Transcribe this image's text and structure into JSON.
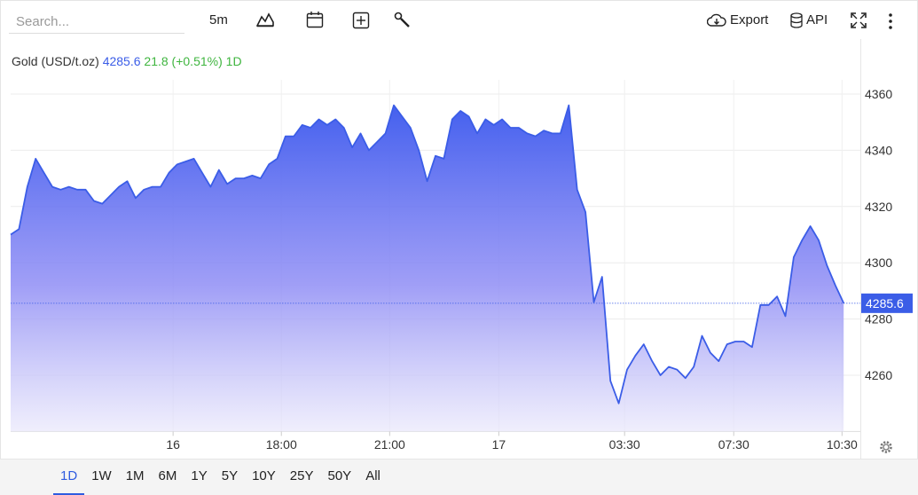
{
  "toolbar": {
    "search_placeholder": "Search...",
    "interval": "5m",
    "export": "Export",
    "api": "API"
  },
  "chart_data": {
    "type": "area",
    "title": "Gold (USD/t.oz)",
    "change": "21.8 (+0.51%)",
    "period": "1D",
    "color": "#3b5de7",
    "x": [
      0,
      1,
      2,
      3,
      4,
      5,
      6,
      7,
      8,
      9,
      10,
      11,
      12,
      13,
      14,
      15,
      16,
      17,
      18,
      19,
      20,
      21,
      22,
      23,
      24,
      25,
      26,
      27,
      28,
      29,
      30,
      31,
      32,
      33,
      34,
      35,
      36,
      37,
      38,
      39,
      40,
      41,
      42,
      43,
      44,
      45,
      46,
      47,
      48,
      49,
      50,
      51,
      52,
      53,
      54,
      55,
      56,
      57,
      58,
      59,
      60,
      61,
      62,
      63,
      64,
      65,
      66,
      67,
      68,
      69,
      70,
      71,
      72,
      73,
      74,
      75,
      76,
      77,
      78,
      79,
      80,
      81,
      82,
      83,
      84,
      85,
      86,
      87,
      88,
      89,
      90,
      91,
      92,
      93,
      94,
      95,
      96,
      97,
      98,
      99,
      100
    ],
    "values": [
      4310,
      4312,
      4327,
      4337,
      4332,
      4327,
      4326,
      4327,
      4326,
      4326,
      4322,
      4321,
      4324,
      4327,
      4329,
      4323,
      4326,
      4327,
      4327,
      4332,
      4335,
      4336,
      4337,
      4332,
      4327,
      4333,
      4328,
      4330,
      4330,
      4331,
      4330,
      4335,
      4337,
      4345,
      4345,
      4349,
      4348,
      4351,
      4349,
      4351,
      4348,
      4341,
      4346,
      4340,
      4343,
      4346,
      4356,
      4352,
      4348,
      4340,
      4329,
      4338,
      4337,
      4351,
      4354,
      4352,
      4346,
      4351,
      4349,
      4351,
      4348,
      4348,
      4346,
      4345,
      4347,
      4346,
      4346,
      4356,
      4326,
      4318,
      4286,
      4295,
      4258,
      4250,
      4262,
      4267,
      4271,
      4265,
      4260,
      4263,
      4262,
      4259,
      4263,
      4274,
      4268,
      4265,
      4271,
      4272,
      4272,
      4270,
      4285,
      4285,
      4288,
      4281,
      4302,
      4308,
      4313,
      4308,
      4299,
      4292,
      4285.6
    ],
    "xlim": [
      0,
      102
    ],
    "xticks": [
      {
        "value": 19.5,
        "label": "16"
      },
      {
        "value": 32.5,
        "label": "18:00"
      },
      {
        "value": 45.5,
        "label": "21:00"
      },
      {
        "value": 58.6,
        "label": "17"
      },
      {
        "value": 73.7,
        "label": "03:30"
      },
      {
        "value": 86.8,
        "label": "07:30"
      },
      {
        "value": 99.8,
        "label": "10:30"
      }
    ],
    "ylim": [
      4240,
      4380
    ],
    "yticks": [
      4260,
      4280,
      4300,
      4320,
      4340,
      4360
    ],
    "grid": true
  },
  "ranges": [
    "1D",
    "1W",
    "1M",
    "6M",
    "1Y",
    "5Y",
    "10Y",
    "25Y",
    "50Y",
    "All"
  ],
  "active_range": 0
}
